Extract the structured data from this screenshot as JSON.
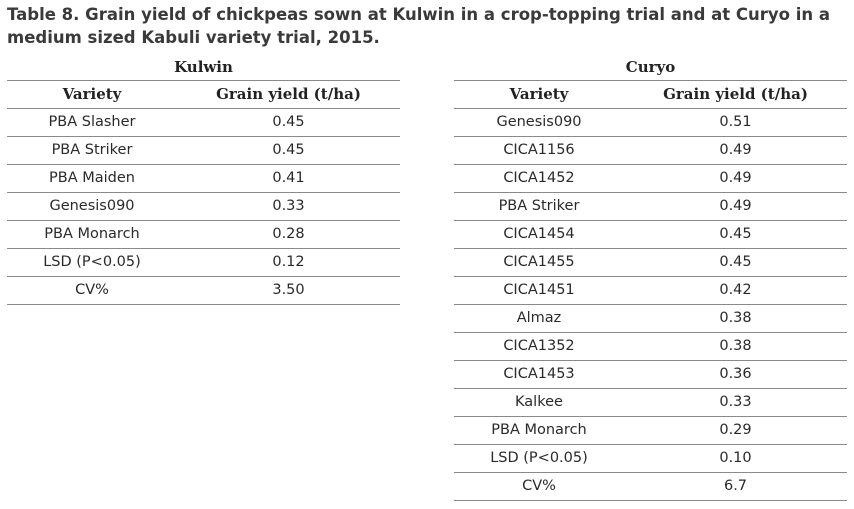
{
  "caption": {
    "line1": "Table 8. Grain yield of chickpeas sown at Kulwin in a crop-topping trial and at Curyo in a",
    "line2": "medium sized Kabuli variety trial, 2015."
  },
  "kulwin": {
    "title": "Kulwin",
    "headers": [
      "Variety",
      "Grain yield (t/ha)"
    ],
    "rows": [
      [
        "PBA Slasher",
        "0.45"
      ],
      [
        "PBA Striker",
        "0.45"
      ],
      [
        "PBA Maiden",
        "0.41"
      ],
      [
        "Genesis090",
        "0.33"
      ],
      [
        "PBA Monarch",
        "0.28"
      ],
      [
        "LSD (P<0.05)",
        "0.12"
      ],
      [
        "CV%",
        "3.50"
      ]
    ]
  },
  "curyo": {
    "title": "Curyo",
    "headers": [
      "Variety",
      "Grain yield (t/ha)"
    ],
    "rows": [
      [
        "Genesis090",
        "0.51"
      ],
      [
        "CICA1156",
        "0.49"
      ],
      [
        "CICA1452",
        "0.49"
      ],
      [
        "PBA Striker",
        "0.49"
      ],
      [
        "CICA1454",
        "0.45"
      ],
      [
        "CICA1455",
        "0.45"
      ],
      [
        "CICA1451",
        "0.42"
      ],
      [
        "Almaz",
        "0.38"
      ],
      [
        "CICA1352",
        "0.38"
      ],
      [
        "CICA1453",
        "0.36"
      ],
      [
        "Kalkee",
        "0.33"
      ],
      [
        "PBA Monarch",
        "0.29"
      ],
      [
        "LSD (P<0.05)",
        "0.10"
      ],
      [
        "CV%",
        "6.7"
      ]
    ]
  }
}
